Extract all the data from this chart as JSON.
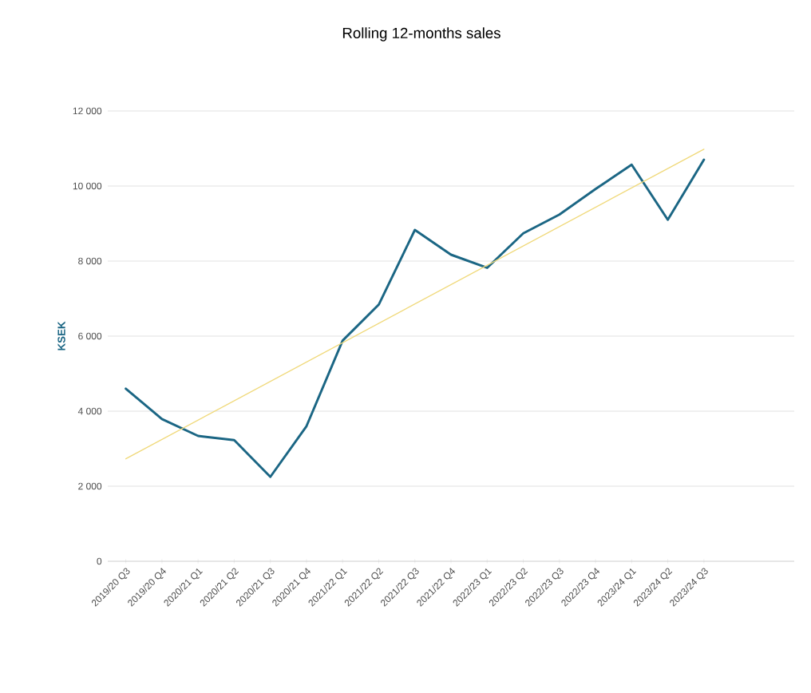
{
  "chart_data": {
    "type": "line",
    "title": "Rolling 12-months sales",
    "ylabel": "KSEK",
    "categories": [
      "2019/20 Q3",
      "2019/20 Q4",
      "2020/21 Q1",
      "2020/21 Q2",
      "2020/21 Q3",
      "2020/21 Q4",
      "2021/22 Q1",
      "2021/22 Q2",
      "2021/22 Q3",
      "2021/22 Q4",
      "2022/23 Q1",
      "2022/23 Q2",
      "2022/23 Q3",
      "2022/23 Q4",
      "2023/24 Q1",
      "2023/24 Q2",
      "2023/24 Q3",
      null,
      null
    ],
    "series": [
      {
        "color": "#1b6684",
        "values": [
          4600,
          3790,
          3340,
          3230,
          2250,
          3600,
          5880,
          6840,
          8830,
          8170,
          7820,
          8740,
          9240,
          9920,
          10570,
          9100,
          10700,
          null,
          null
        ]
      },
      {
        "type": "line",
        "color": "#f0d97a",
        "x": [
          "2019/20 Q3",
          "2023/24 Q3"
        ],
        "values": [
          2730,
          10980
        ]
      }
    ],
    "ylim": [
      0,
      12000
    ],
    "yticks": [
      0,
      {
        "value": 2000,
        "label": "2 000"
      },
      {
        "value": 4000,
        "label": "4 000"
      },
      {
        "value": 6000,
        "label": "6 000"
      },
      {
        "value": 8000,
        "label": "8 000"
      },
      {
        "value": 10000,
        "label": "10 000"
      },
      {
        "value": 12000,
        "label": "12 000"
      }
    ],
    "grid": "y",
    "marker": "none",
    "line_style": "solid"
  }
}
